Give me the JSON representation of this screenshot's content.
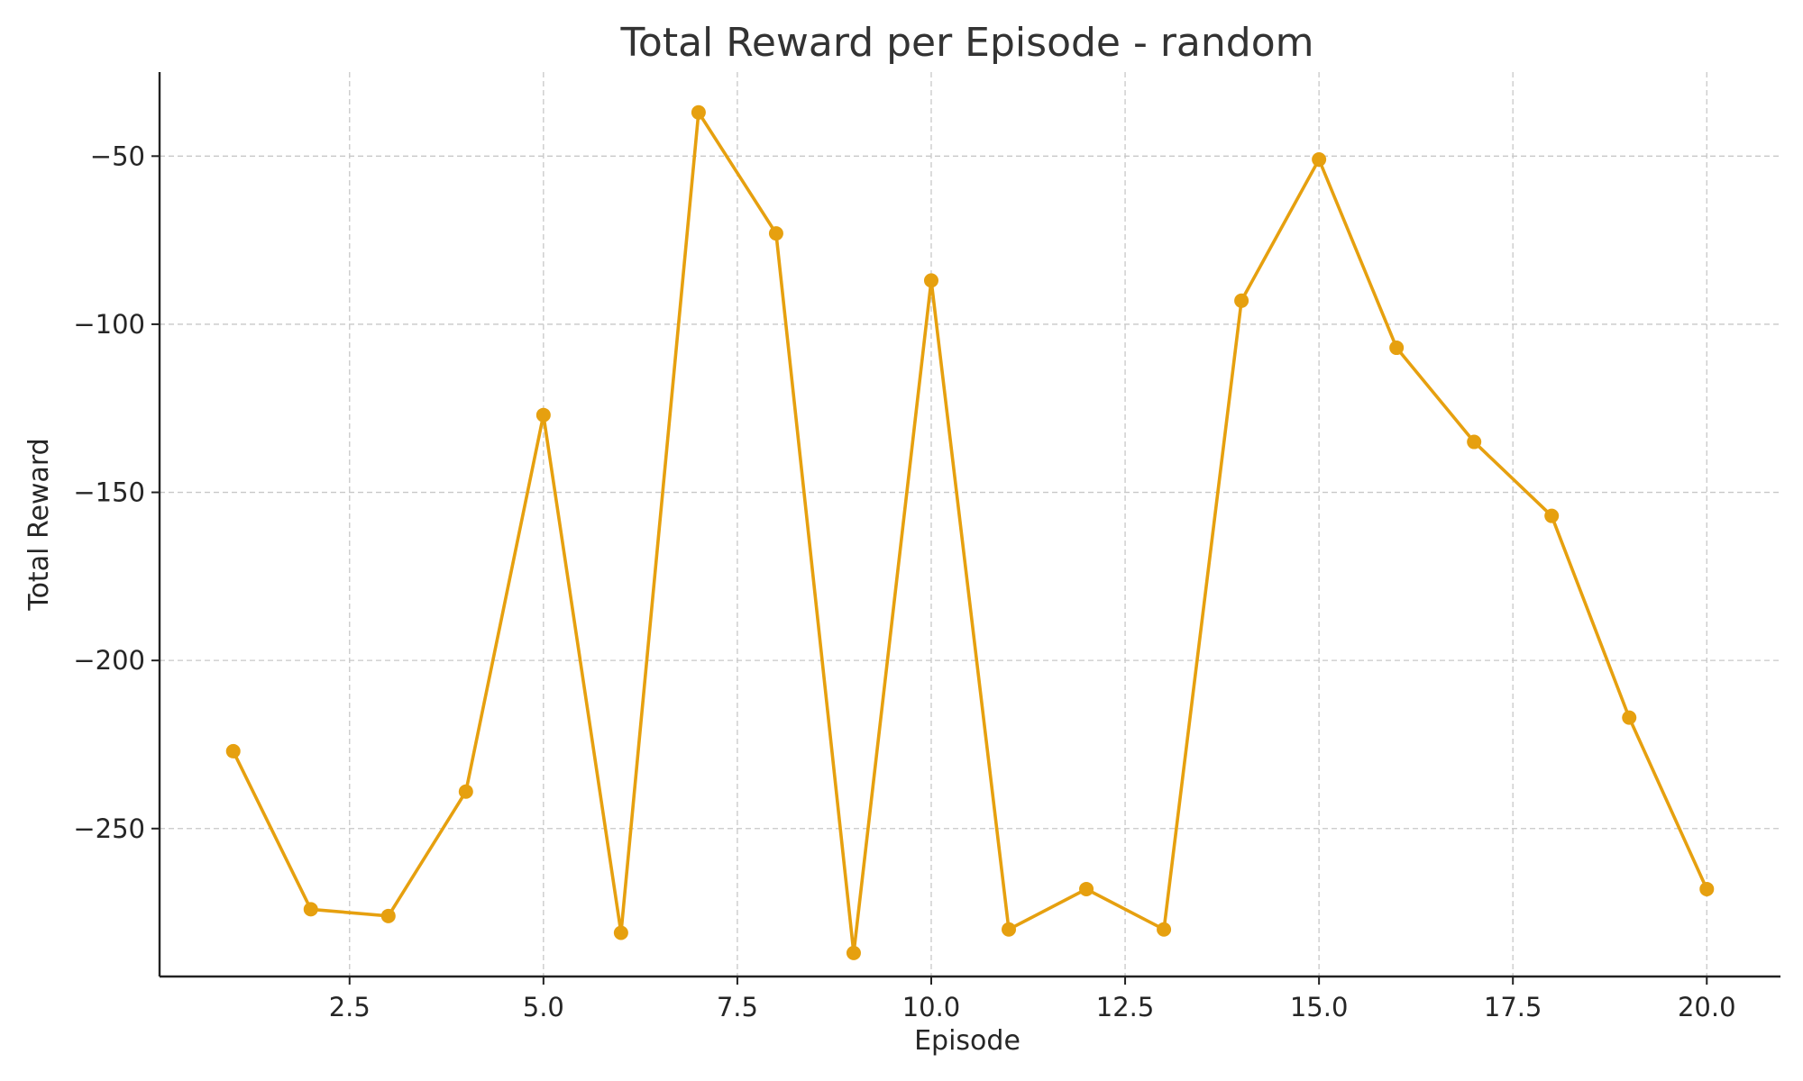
{
  "chart_data": {
    "type": "line",
    "title": "Total Reward per Episode - random",
    "xlabel": "Episode",
    "ylabel": "Total Reward",
    "x": [
      1,
      2,
      3,
      4,
      5,
      6,
      7,
      8,
      9,
      10,
      11,
      12,
      13,
      14,
      15,
      16,
      17,
      18,
      19,
      20
    ],
    "series": [
      {
        "values": [
          -227,
          -274,
          -276,
          -239,
          -127,
          -281,
          -37,
          -73,
          -287,
          -87,
          -280,
          -268,
          -280,
          -93,
          -51,
          -107,
          -135,
          -157,
          -217,
          -268
        ]
      }
    ],
    "xlim": [
      0.05,
      20.95
    ],
    "ylim": [
      -294,
      -25
    ],
    "x_ticks": [
      2.5,
      5.0,
      7.5,
      10.0,
      12.5,
      15.0,
      17.5,
      20.0
    ],
    "x_tick_labels": [
      "2.5",
      "5.0",
      "7.5",
      "10.0",
      "12.5",
      "15.0",
      "17.5",
      "20.0"
    ],
    "y_ticks": [
      -50,
      -100,
      -150,
      -200,
      -250
    ],
    "y_tick_labels": [
      "−50",
      "−100",
      "−150",
      "−200",
      "−250"
    ],
    "grid": true,
    "colors": {
      "line": "#E6A00F"
    }
  }
}
